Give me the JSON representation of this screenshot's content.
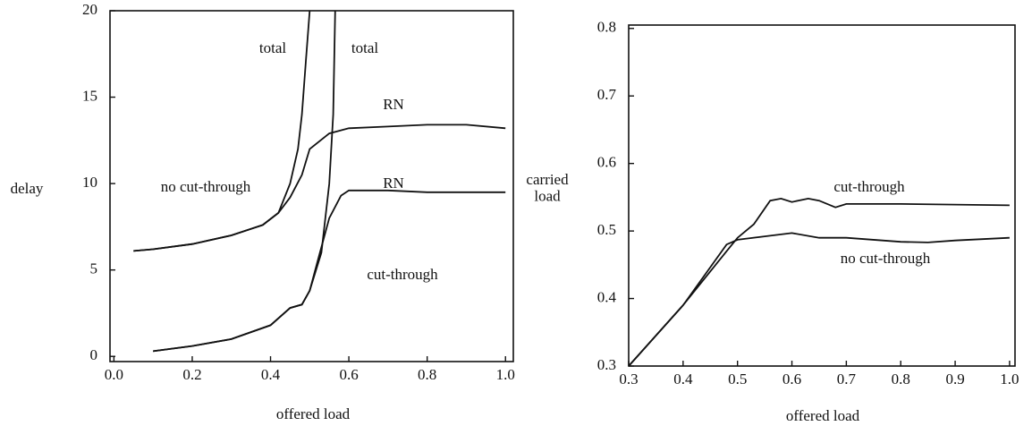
{
  "chart_data": [
    {
      "type": "line",
      "xlabel": "offered load",
      "ylabel": "delay",
      "xlim": [
        -0.01,
        1.02
      ],
      "ylim": [
        -0.3,
        20
      ],
      "xticks": [
        {
          "value": 0,
          "label": "0.0"
        },
        0.2,
        0.4,
        0.6,
        0.8,
        {
          "value": 1,
          "label": "1.0"
        }
      ],
      "yticks": [
        0,
        5,
        10,
        15,
        20
      ],
      "annotations": [
        "no cut-through",
        "cut-through"
      ],
      "series": [
        {
          "name": "total",
          "color": "#111",
          "x": [
            0.05,
            0.1,
            0.2,
            0.3,
            0.38,
            0.42,
            0.45,
            0.47,
            0.48,
            0.49,
            0.5
          ],
          "values": [
            6.1,
            6.2,
            6.5,
            7.0,
            7.6,
            8.3,
            10,
            12,
            14,
            17,
            20
          ]
        },
        {
          "name": "total",
          "color": "#111",
          "x": [
            0.1,
            0.2,
            0.3,
            0.4,
            0.45,
            0.48,
            0.5,
            0.53,
            0.55,
            0.56,
            0.565
          ],
          "values": [
            0.3,
            0.6,
            1.0,
            1.8,
            2.8,
            3.0,
            3.8,
            6,
            10,
            14,
            20
          ]
        },
        {
          "name": "RN",
          "color": "#111",
          "x": [
            0.05,
            0.1,
            0.2,
            0.3,
            0.38,
            0.42,
            0.45,
            0.48,
            0.5,
            0.55,
            0.6,
            0.7,
            0.8,
            0.9,
            1.0
          ],
          "values": [
            6.1,
            6.2,
            6.5,
            7.0,
            7.6,
            8.3,
            9.2,
            10.5,
            12.0,
            12.9,
            13.2,
            13.3,
            13.4,
            13.4,
            13.2
          ]
        },
        {
          "name": "RN",
          "color": "#111",
          "x": [
            0.1,
            0.2,
            0.3,
            0.4,
            0.45,
            0.48,
            0.5,
            0.52,
            0.55,
            0.58,
            0.6,
            0.7,
            0.8,
            1.0
          ],
          "values": [
            0.3,
            0.6,
            1.0,
            1.8,
            2.8,
            3.0,
            3.8,
            5.5,
            8,
            9.3,
            9.6,
            9.6,
            9.5,
            9.5
          ]
        }
      ]
    },
    {
      "type": "line",
      "xlabel": "offered load",
      "ylabel": "carried load",
      "xlim": [
        0.3,
        1.01
      ],
      "ylim": [
        0.3,
        0.805
      ],
      "xticks": [
        0.3,
        0.4,
        0.5,
        0.6,
        0.7,
        0.8,
        0.9,
        {
          "value": 1,
          "label": "1.0"
        }
      ],
      "yticks": [
        0.3,
        0.4,
        0.5,
        0.6,
        0.7,
        0.8
      ],
      "series": [
        {
          "name": "cut-through",
          "color": "#111",
          "x": [
            0.3,
            0.4,
            0.48,
            0.5,
            0.53,
            0.56,
            0.58,
            0.6,
            0.63,
            0.65,
            0.68,
            0.7,
            0.8,
            1.0
          ],
          "values": [
            0.3,
            0.39,
            0.47,
            0.49,
            0.51,
            0.545,
            0.548,
            0.543,
            0.548,
            0.545,
            0.535,
            0.54,
            0.54,
            0.538
          ]
        },
        {
          "name": "no cut-through",
          "color": "#111",
          "x": [
            0.3,
            0.4,
            0.48,
            0.5,
            0.6,
            0.65,
            0.7,
            0.8,
            0.85,
            0.9,
            1.0
          ],
          "values": [
            0.3,
            0.39,
            0.48,
            0.487,
            0.497,
            0.49,
            0.49,
            0.484,
            0.483,
            0.486,
            0.49
          ]
        }
      ]
    }
  ]
}
